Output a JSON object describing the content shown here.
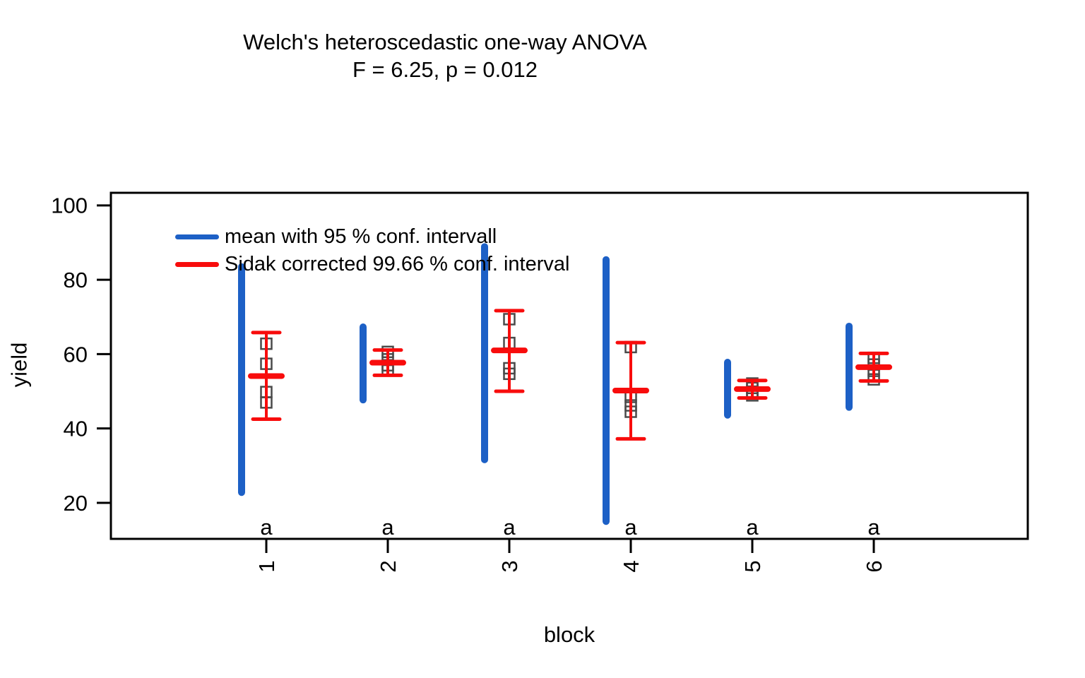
{
  "colors": {
    "ci95_blue": "#1d60c6",
    "sidak_red": "#f80c0c",
    "group_letter_green": "#17641d",
    "point_outline_gray": "#4a4a4a",
    "axis_black": "#000000"
  },
  "chart_data": {
    "type": "scatter",
    "title": "Welch's heteroscedastic one-way ANOVA",
    "subtitle": "F = 6.25, p = 0.012",
    "xlabel": "block",
    "ylabel": "yield",
    "x_categories": [
      "1",
      "2",
      "3",
      "4",
      "5",
      "6"
    ],
    "group_letters": [
      "a",
      "a",
      "a",
      "a",
      "a",
      "a"
    ],
    "yticks": [
      20,
      40,
      60,
      80,
      100
    ],
    "ylim": [
      10.3,
      103.4
    ],
    "grid": false,
    "legend_position": "top-left-inside",
    "legend": [
      {
        "label": "mean with 95 % conf. intervall",
        "color_key": "ci95_blue"
      },
      {
        "label": "Sidak corrected 99.66 % conf. interval",
        "color_key": "sidak_red"
      }
    ],
    "blocks": [
      {
        "block": "1",
        "letter": "a",
        "ci95": [
          22.8,
          83.5
        ],
        "sidak_ci": [
          42.5,
          65.8
        ],
        "mean": 54.1,
        "points": [
          62.8,
          57.4,
          49.8,
          47.0
        ]
      },
      {
        "block": "2",
        "letter": "a",
        "ci95": [
          47.7,
          67.3
        ],
        "sidak_ci": [
          54.3,
          61.1
        ],
        "mean": 57.7,
        "points": [
          60.6,
          58.6,
          57.0,
          55.6
        ]
      },
      {
        "block": "3",
        "letter": "a",
        "ci95": [
          31.6,
          88.9
        ],
        "sidak_ci": [
          50.0,
          71.7
        ],
        "mean": 61.0,
        "points": [
          69.4,
          63.0,
          56.2,
          54.7
        ]
      },
      {
        "block": "4",
        "letter": "a",
        "ci95": [
          15.0,
          85.4
        ],
        "sidak_ci": [
          37.2,
          63.1
        ],
        "mean": 50.2,
        "points": [
          61.9,
          48.5,
          46.2,
          44.5
        ]
      },
      {
        "block": "5",
        "letter": "a",
        "ci95": [
          43.6,
          57.8
        ],
        "sidak_ci": [
          48.2,
          52.9
        ],
        "mean": 50.6,
        "points": [
          52.1,
          50.9,
          49.9,
          48.9
        ]
      },
      {
        "block": "6",
        "letter": "a",
        "ci95": [
          45.7,
          67.5
        ],
        "sidak_ci": [
          52.8,
          60.2
        ],
        "mean": 56.5,
        "points": [
          59.0,
          57.2,
          55.5,
          53.2
        ]
      }
    ]
  }
}
